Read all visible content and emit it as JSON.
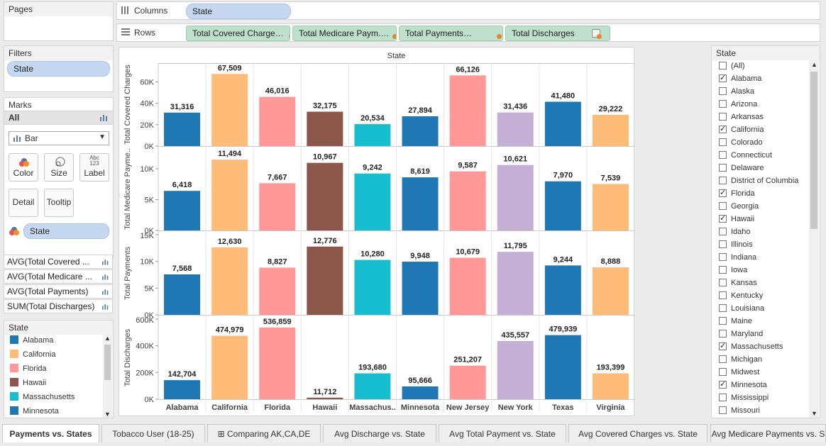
{
  "pages": {
    "title": "Pages"
  },
  "columns": {
    "label": "Columns",
    "pill": "State"
  },
  "rows": {
    "label": "Rows",
    "pills": [
      "Total Covered Charges",
      "Total Medicare Paym..",
      "Total Payments",
      "Total Discharges"
    ]
  },
  "filters": {
    "title": "Filters",
    "pill": "State"
  },
  "marks": {
    "title": "Marks",
    "all_label": "All",
    "mark_type": "Bar",
    "buttons": [
      "Color",
      "Size",
      "Label",
      "Detail",
      "Tooltip"
    ],
    "color_pill": "State",
    "aggregates": [
      "AVG(Total Covered ...",
      "AVG(Total Medicare ...",
      "AVG(Total Payments)",
      "SUM(Total Discharges)"
    ]
  },
  "legend": {
    "title": "State",
    "items": [
      {
        "label": "Alabama",
        "color": "#1f77b4"
      },
      {
        "label": "California",
        "color": "#ffbb78"
      },
      {
        "label": "Florida",
        "color": "#ff9896"
      },
      {
        "label": "Hawaii",
        "color": "#8c564b"
      },
      {
        "label": "Massachusetts",
        "color": "#17becf"
      },
      {
        "label": "Minnesota",
        "color": "#1f77b4"
      }
    ]
  },
  "state_filter": {
    "title": "State",
    "items": [
      {
        "label": "(All)",
        "checked": false
      },
      {
        "label": "Alabama",
        "checked": true
      },
      {
        "label": "Alaska",
        "checked": false
      },
      {
        "label": "Arizona",
        "checked": false
      },
      {
        "label": "Arkansas",
        "checked": false
      },
      {
        "label": "California",
        "checked": true
      },
      {
        "label": "Colorado",
        "checked": false
      },
      {
        "label": "Connecticut",
        "checked": false
      },
      {
        "label": "Delaware",
        "checked": false
      },
      {
        "label": "District of Columbia",
        "checked": false
      },
      {
        "label": "Florida",
        "checked": true
      },
      {
        "label": "Georgia",
        "checked": false
      },
      {
        "label": "Hawaii",
        "checked": true
      },
      {
        "label": "Idaho",
        "checked": false
      },
      {
        "label": "Illinois",
        "checked": false
      },
      {
        "label": "Indiana",
        "checked": false
      },
      {
        "label": "Iowa",
        "checked": false
      },
      {
        "label": "Kansas",
        "checked": false
      },
      {
        "label": "Kentucky",
        "checked": false
      },
      {
        "label": "Louisiana",
        "checked": false
      },
      {
        "label": "Maine",
        "checked": false
      },
      {
        "label": "Maryland",
        "checked": false
      },
      {
        "label": "Massachusetts",
        "checked": true
      },
      {
        "label": "Michigan",
        "checked": false
      },
      {
        "label": "Midwest",
        "checked": false
      },
      {
        "label": "Minnesota",
        "checked": true
      },
      {
        "label": "Mississippi",
        "checked": false
      },
      {
        "label": "Missouri",
        "checked": false
      }
    ]
  },
  "tabs": [
    {
      "label": "Payments vs. States",
      "active": true
    },
    {
      "label": "Tobacco User (18-25)",
      "active": false
    },
    {
      "label": "Comparing AK,CA,DE",
      "active": false
    },
    {
      "label": "Avg Discharge vs. State",
      "active": false
    },
    {
      "label": "Avg Total Payment vs. State",
      "active": false
    },
    {
      "label": "Avg Covered Charges vs. State",
      "active": false
    },
    {
      "label": "Avg Medicare Payments vs. S",
      "active": false
    }
  ],
  "chart_data": {
    "type": "bar",
    "title": "State",
    "categories": [
      "Alabama",
      "California",
      "Florida",
      "Hawaii",
      "Massachus..",
      "Minnesota",
      "New Jersey",
      "New York",
      "Texas",
      "Virginia"
    ],
    "colors": [
      "#1f77b4",
      "#ffbb78",
      "#ff9896",
      "#8c564b",
      "#17becf",
      "#1f77b4",
      "#ff9896",
      "#c5b0d5",
      "#1f77b4",
      "#ffbb78"
    ],
    "panes": [
      {
        "ylabel": "Total Covered Charges",
        "ylim": [
          0,
          75000
        ],
        "ticks": [
          0,
          20000,
          40000,
          60000
        ],
        "tick_labels": [
          "0K",
          "20K",
          "40K",
          "60K"
        ],
        "values": [
          31316,
          67509,
          46016,
          32175,
          20534,
          27894,
          66126,
          31436,
          41480,
          29222
        ],
        "labels": [
          "31,316",
          "67,509",
          "46,016",
          "32,175",
          "20,534",
          "27,894",
          "66,126",
          "31,436",
          "41,480",
          "29,222"
        ]
      },
      {
        "ylabel": "Total Medicare Payme..",
        "ylim": [
          0,
          13000
        ],
        "ticks": [
          0,
          5000,
          10000
        ],
        "tick_labels": [
          "0K",
          "5K",
          "10K"
        ],
        "values": [
          6418,
          11494,
          7667,
          10967,
          9242,
          8619,
          9587,
          10621,
          7970,
          7539
        ],
        "labels": [
          "6,418",
          "11,494",
          "7,667",
          "10,967",
          "9,242",
          "8,619",
          "9,587",
          "10,621",
          "7,970",
          "7,539"
        ]
      },
      {
        "ylabel": "Total Payments",
        "ylim": [
          0,
          15000
        ],
        "ticks": [
          0,
          5000,
          10000,
          15000
        ],
        "tick_labels": [
          "0K",
          "5K",
          "10K",
          "15K"
        ],
        "values": [
          7568,
          12630,
          8827,
          12776,
          10280,
          9948,
          10679,
          11795,
          9244,
          8888
        ],
        "labels": [
          "7,568",
          "12,630",
          "8,827",
          "12,776",
          "10,280",
          "9,948",
          "10,679",
          "11,795",
          "9,244",
          "8,888"
        ]
      },
      {
        "ylabel": "Total Discharges",
        "ylim": [
          0,
          600000
        ],
        "ticks": [
          0,
          200000,
          400000,
          600000
        ],
        "tick_labels": [
          "0K",
          "200K",
          "400K",
          "600K"
        ],
        "values": [
          142704,
          474979,
          536859,
          11712,
          193680,
          95666,
          251207,
          435557,
          479939,
          193399
        ],
        "labels": [
          "142,704",
          "474,979",
          "536,859",
          "11,712",
          "193,680",
          "95,666",
          "251,207",
          "435,557",
          "479,939",
          "193,399"
        ]
      }
    ]
  }
}
